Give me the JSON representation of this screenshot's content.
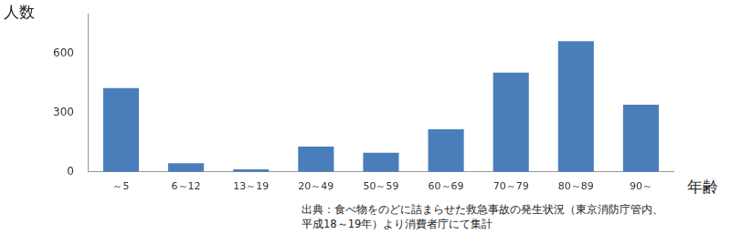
{
  "chart_data": {
    "type": "bar",
    "ylabel": "人数",
    "xlabel": "年齢",
    "categories": [
      "～5",
      "6～12",
      "13～19",
      "20～49",
      "50～59",
      "60～69",
      "70～79",
      "80～89",
      "90～"
    ],
    "values": [
      424,
      44,
      13,
      128,
      97,
      216,
      503,
      662,
      340
    ],
    "color": "#4a7ebb",
    "ylim": [
      0,
      800
    ],
    "yticks": [
      0,
      300,
      600
    ],
    "grid": false,
    "annotations": [
      "出典：食べ物をのどに詰まらせた救急事故の発生状況（東京消防庁管内、",
      "平成18～19年）より消費者庁にて集計"
    ]
  }
}
